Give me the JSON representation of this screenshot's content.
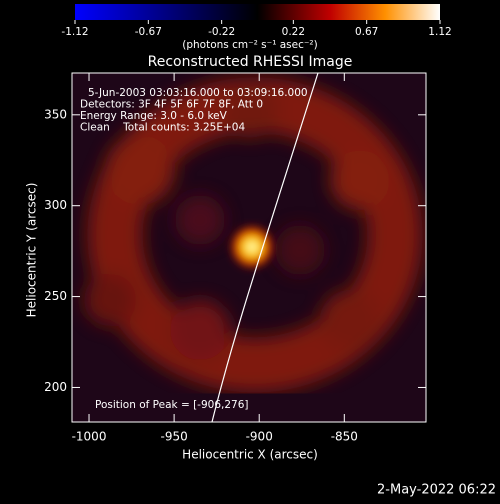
{
  "chart_data": {
    "type": "image",
    "title": "Reconstructed RHESSI Image",
    "annotations": [
      "5-Jun-2003 03:03:16.000 to 03:09:16.000",
      "Detectors: 3F 4F 5F 6F 7F 8F, Att 0",
      "Energy Range: 3.0 - 6.0 keV",
      "Clean    Total counts: 3.25E+04"
    ],
    "peak_text": "Position of Peak = [-906,276]",
    "xlabel": "Heliocentric X (arcsec)",
    "ylabel": "Heliocentric Y (arcsec)",
    "xlim": [
      -1010,
      -802
    ],
    "ylim": [
      181,
      373
    ],
    "xticks": [
      -1000,
      -950,
      -900,
      -850
    ],
    "yticks": [
      200,
      250,
      300,
      350
    ],
    "colorbar": {
      "label": "(photons cm⁻² s⁻¹ asec⁻²)",
      "lim": [
        -1.12,
        1.12
      ],
      "ticks": [
        -1.12,
        -0.67,
        -0.22,
        0.22,
        0.67,
        1.12
      ]
    }
  },
  "footer": "2-May-2022 06:22"
}
